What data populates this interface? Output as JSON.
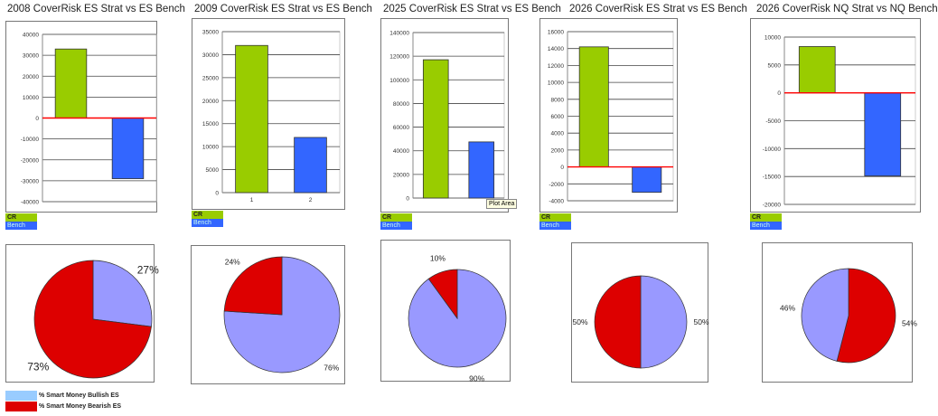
{
  "legend": {
    "cr_label": "CR",
    "bench_label": "Bench"
  },
  "pie_legend": {
    "bullish_label": "% Smart Money Bullish ES",
    "bearish_label": "% Smart Money Bearish ES"
  },
  "tooltip": "Plot Area",
  "colors": {
    "cr": "#99cc00",
    "bench": "#3366ff",
    "bullish": "#9999ff",
    "bearish": "#dd0000",
    "bullish_legend": "#99ccff",
    "zero_line": "#ff0000"
  },
  "chart_data": [
    {
      "type": "bar",
      "title": "2008 CoverRisk ES Strat vs ES Bench",
      "series": [
        {
          "name": "CR",
          "values": [
            33000
          ]
        },
        {
          "name": "Bench",
          "values": [
            -29000
          ]
        }
      ],
      "ylim": [
        -40000,
        40000
      ],
      "ystep": 10000,
      "yticks": [
        "40000",
        "30000",
        "20000",
        "10000",
        "0",
        "-10000",
        "-20000",
        "-30000",
        "-40000"
      ],
      "xticks": []
    },
    {
      "type": "bar",
      "title": "2009 CoverRisk ES Strat vs ES Bench",
      "series": [
        {
          "name": "CR",
          "values": [
            32000
          ]
        },
        {
          "name": "Bench",
          "values": [
            12000
          ]
        }
      ],
      "ylim": [
        0,
        35000
      ],
      "ystep": 5000,
      "yticks": [
        "35000",
        "30000",
        "25000",
        "20000",
        "15000",
        "10000",
        "5000",
        "0"
      ],
      "xticks": [
        "1",
        "2"
      ]
    },
    {
      "type": "bar",
      "title": "2025 CoverRisk ES Strat vs ES Bench",
      "series": [
        {
          "name": "CR",
          "values": [
            117000
          ]
        },
        {
          "name": "Bench",
          "values": [
            47500
          ]
        }
      ],
      "ylim": [
        0,
        140000
      ],
      "ystep": 20000,
      "yticks": [
        "140000",
        "120000",
        "100000",
        "80000",
        "60000",
        "40000",
        "20000",
        "0"
      ],
      "xticks": []
    },
    {
      "type": "bar",
      "title": "2026 CoverRisk ES Strat vs ES Bench",
      "series": [
        {
          "name": "CR",
          "values": [
            14200
          ]
        },
        {
          "name": "Bench",
          "values": [
            -3000
          ]
        }
      ],
      "ylim": [
        -4000,
        16000
      ],
      "ystep": 2000,
      "yticks": [
        "16000",
        "14000",
        "12000",
        "10000",
        "8000",
        "6000",
        "4000",
        "2000",
        "0",
        "-2000",
        "-4000"
      ],
      "xticks": []
    },
    {
      "type": "bar",
      "title": "2026 CoverRisk NQ Strat vs NQ Bench",
      "series": [
        {
          "name": "CR",
          "values": [
            8300
          ]
        },
        {
          "name": "Bench",
          "values": [
            -14900
          ]
        }
      ],
      "ylim": [
        -20000,
        10000
      ],
      "ystep": 5000,
      "yticks": [
        "10000",
        "5000",
        "0",
        "-5000",
        "-10000",
        "-15000",
        "-20000"
      ],
      "xticks": []
    },
    {
      "type": "pie",
      "slices": [
        {
          "name": "% Smart Money Bullish ES",
          "value": 27,
          "label": "27%"
        },
        {
          "name": "% Smart Money Bearish ES",
          "value": 73,
          "label": "73%"
        }
      ]
    },
    {
      "type": "pie",
      "slices": [
        {
          "name": "% Smart Money Bullish ES",
          "value": 76,
          "label": "76%"
        },
        {
          "name": "% Smart Money Bearish ES",
          "value": 24,
          "label": "24%"
        }
      ]
    },
    {
      "type": "pie",
      "slices": [
        {
          "name": "% Smart Money Bullish ES",
          "value": 90,
          "label": "90%"
        },
        {
          "name": "% Smart Money Bearish ES",
          "value": 10,
          "label": "10%"
        }
      ]
    },
    {
      "type": "pie",
      "slices": [
        {
          "name": "% Smart Money Bullish ES",
          "value": 50,
          "label": "50%"
        },
        {
          "name": "% Smart Money Bearish ES",
          "value": 50,
          "label": "50%"
        }
      ]
    },
    {
      "type": "pie",
      "slices": [
        {
          "name": "% Smart Money Bearish ES",
          "value": 54,
          "label": "54%"
        },
        {
          "name": "% Smart Money Bullish ES",
          "value": 46,
          "label": "46%"
        }
      ]
    }
  ]
}
